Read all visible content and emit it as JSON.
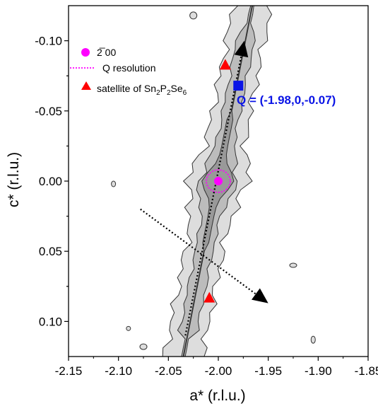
{
  "chart_data": {
    "type": "contour",
    "xlabel": "a* (r.l.u.)",
    "ylabel": "c* (r.l.u.)",
    "xlim": [
      -2.15,
      -1.85
    ],
    "ylim": [
      -0.125,
      0.125
    ],
    "y_inverted": true,
    "x_ticks": [
      "-2.15",
      "-2.10",
      "-2.05",
      "-2.00",
      "-1.95",
      "-1.90",
      "-1.85"
    ],
    "x_tick_values": [
      -2.15,
      -2.1,
      -2.05,
      -2.0,
      -1.95,
      -1.9,
      -1.85
    ],
    "y_ticks": [
      "-0.10",
      "-0.05",
      "0.00",
      "0.05",
      "0.10"
    ],
    "y_tick_values": [
      -0.1,
      -0.05,
      0.0,
      0.05,
      0.1
    ],
    "legend": {
      "position": "top-left",
      "entries": [
        {
          "label": "2̅ 00",
          "marker": "circle",
          "color": "#ff00ff"
        },
        {
          "label": "Q resolution",
          "marker": "dotted-line",
          "color": "#ff00ff"
        },
        {
          "label": "satellite of Sn2P2Se6",
          "marker": "triangle",
          "color": "#ff0000",
          "label_base": "satellite of Sn",
          "sub1": "2",
          "mid1": "P",
          "sub2": "2",
          "mid2": "Se",
          "sub3": "6"
        }
      ]
    },
    "points": [
      {
        "name": "Bragg peak",
        "x": -2.0,
        "y": 0.0,
        "marker": "circle",
        "color": "#ff00ff"
      },
      {
        "name": "satellite-upper",
        "x": -1.993,
        "y": -0.083,
        "marker": "triangle",
        "color": "#ff0000"
      },
      {
        "name": "satellite-lower",
        "x": -2.009,
        "y": 0.083,
        "marker": "triangle",
        "color": "#ff0000"
      },
      {
        "name": "Q marker",
        "x": -1.98,
        "y": -0.068,
        "marker": "square",
        "color": "#0a14e6"
      }
    ],
    "annotation": {
      "text": "Q = (-1.98,0,-0.07)",
      "color": "#0a14e6"
    },
    "arrows": [
      {
        "name": "longitudinal",
        "from": [
          -2.033,
          0.11
        ],
        "to": [
          -1.974,
          -0.1
        ]
      },
      {
        "name": "transverse",
        "from": [
          -2.078,
          0.02
        ],
        "to": [
          -1.95,
          0.087
        ]
      }
    ],
    "resolution_ellipse": {
      "center": [
        -2.0,
        0.0
      ],
      "semi_x": 0.012,
      "semi_y": 0.008
    },
    "contour_levels": 3,
    "colors": {
      "fill_outer": "#dddddd",
      "fill_mid": "#bcbcbc",
      "fill_inner": "#999999",
      "contour_line": "#333333"
    }
  }
}
